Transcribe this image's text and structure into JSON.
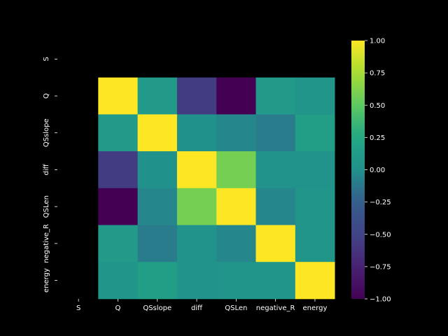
{
  "chart_data": {
    "type": "heatmap",
    "row_labels": [
      "S",
      "Q",
      "QSslope",
      "diff",
      "QSLen",
      "negative_R",
      "energy"
    ],
    "col_labels": [
      "S",
      "Q",
      "QSslope",
      "diff",
      "QSLen",
      "negative_R",
      "energy"
    ],
    "values": [
      [
        null,
        null,
        null,
        null,
        null,
        null,
        null
      ],
      [
        null,
        1.0,
        0.1,
        -0.55,
        -1.0,
        0.1,
        0.05
      ],
      [
        null,
        0.1,
        1.0,
        0.0,
        -0.05,
        -0.1,
        0.15
      ],
      [
        null,
        -0.55,
        0.0,
        1.0,
        0.58,
        0.02,
        0.02
      ],
      [
        null,
        -1.0,
        -0.05,
        0.58,
        1.0,
        -0.05,
        0.05
      ],
      [
        null,
        0.1,
        -0.1,
        0.02,
        -0.05,
        1.0,
        0.05
      ],
      [
        null,
        0.05,
        0.15,
        0.02,
        0.05,
        0.05,
        1.0
      ]
    ],
    "colorbar": {
      "vmin": -1.0,
      "vmax": 1.0,
      "ticks": [
        "1.00",
        "0.75",
        "0.50",
        "0.25",
        "0.00",
        "−0.25",
        "−0.50",
        "−0.75",
        "−1.00"
      ],
      "colormap": "viridis"
    },
    "background": "#000000",
    "text_color": "#ffffff"
  }
}
